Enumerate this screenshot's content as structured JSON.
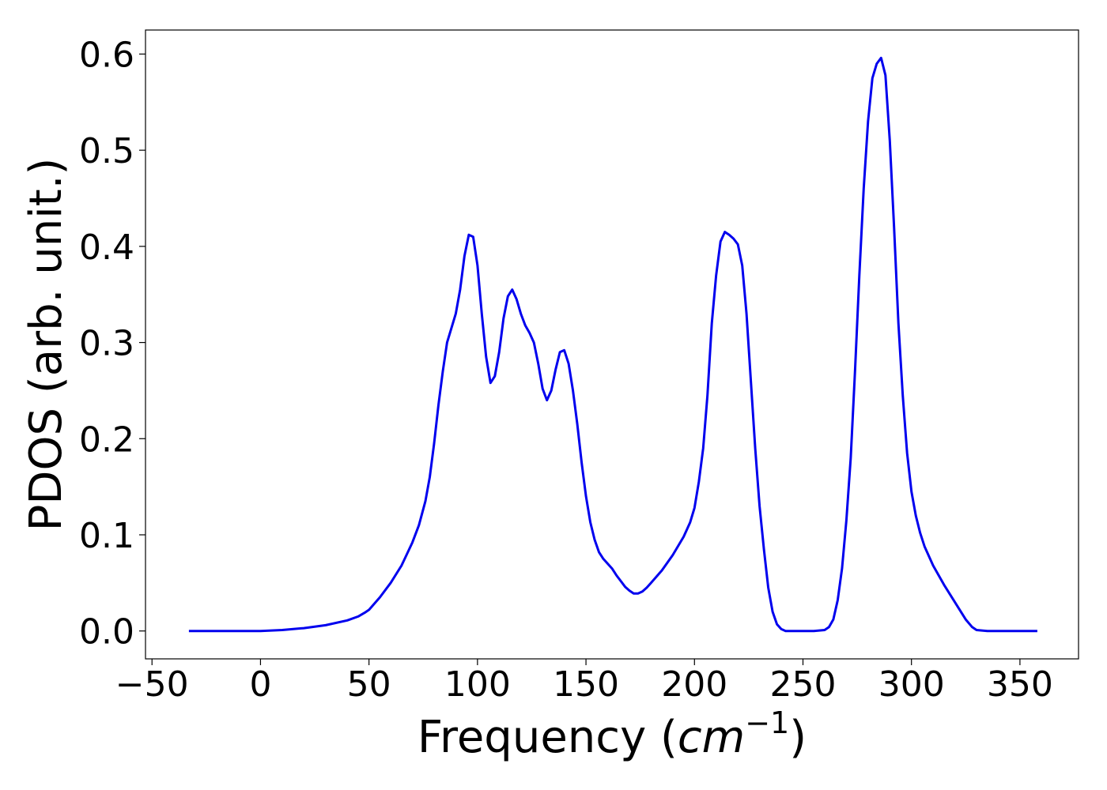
{
  "chart_data": {
    "type": "line",
    "title": "",
    "xlabel": "Frequency (cm⁻¹)",
    "xlabel_parts": {
      "prefix": "Frequency (",
      "unit_base": "cm",
      "unit_exp": "−1",
      "suffix": ")"
    },
    "ylabel": "PDOS (arb. unit.)",
    "xlim": [
      -53,
      377
    ],
    "ylim": [
      -0.029,
      0.625
    ],
    "x_ticks": [
      -50,
      0,
      50,
      100,
      150,
      200,
      250,
      300,
      350
    ],
    "x_tick_labels": [
      "−50",
      "0",
      "50",
      "100",
      "150",
      "200",
      "250",
      "300",
      "350"
    ],
    "y_ticks": [
      0.0,
      0.1,
      0.2,
      0.3,
      0.4,
      0.5,
      0.6
    ],
    "y_tick_labels": [
      "0.0",
      "0.1",
      "0.2",
      "0.3",
      "0.4",
      "0.5",
      "0.6"
    ],
    "grid": false,
    "legend": "none",
    "line_color": "#0000ee",
    "series": [
      {
        "x": [
          -33,
          -20,
          0,
          10,
          20,
          30,
          40,
          45,
          48,
          50,
          55,
          60,
          65,
          70,
          73,
          76,
          78,
          80,
          82,
          84,
          86,
          88,
          90,
          92,
          94,
          96,
          98,
          100,
          102,
          104,
          106,
          108,
          110,
          112,
          114,
          116,
          118,
          120,
          122,
          124,
          126,
          128,
          130,
          132,
          134,
          136,
          138,
          140,
          142,
          144,
          146,
          148,
          150,
          152,
          154,
          156,
          158,
          160,
          162,
          164,
          166,
          168,
          170,
          172,
          174,
          176,
          178,
          180,
          185,
          190,
          195,
          198,
          200,
          202,
          204,
          206,
          208,
          210,
          212,
          214,
          216,
          218,
          220,
          222,
          224,
          226,
          228,
          230,
          232,
          234,
          236,
          238,
          240,
          242,
          245,
          250,
          255,
          260,
          262,
          264,
          266,
          268,
          270,
          272,
          274,
          276,
          278,
          280,
          282,
          284,
          286,
          288,
          290,
          292,
          294,
          296,
          298,
          300,
          302,
          304,
          306,
          310,
          315,
          320,
          325,
          328,
          330,
          335,
          340,
          350,
          358
        ],
        "y": [
          0.0,
          0.0,
          0.0,
          0.001,
          0.003,
          0.006,
          0.011,
          0.015,
          0.019,
          0.022,
          0.035,
          0.05,
          0.068,
          0.092,
          0.11,
          0.135,
          0.16,
          0.195,
          0.235,
          0.27,
          0.3,
          0.315,
          0.33,
          0.355,
          0.39,
          0.412,
          0.41,
          0.38,
          0.33,
          0.285,
          0.258,
          0.265,
          0.29,
          0.325,
          0.348,
          0.355,
          0.345,
          0.33,
          0.318,
          0.31,
          0.3,
          0.278,
          0.252,
          0.24,
          0.25,
          0.272,
          0.29,
          0.292,
          0.278,
          0.25,
          0.215,
          0.175,
          0.14,
          0.113,
          0.095,
          0.082,
          0.075,
          0.07,
          0.065,
          0.058,
          0.052,
          0.046,
          0.042,
          0.039,
          0.039,
          0.041,
          0.045,
          0.05,
          0.063,
          0.079,
          0.098,
          0.113,
          0.128,
          0.155,
          0.19,
          0.245,
          0.32,
          0.37,
          0.405,
          0.415,
          0.412,
          0.408,
          0.402,
          0.38,
          0.33,
          0.26,
          0.19,
          0.13,
          0.085,
          0.045,
          0.02,
          0.007,
          0.002,
          0.0,
          0.0,
          0.0,
          0.0,
          0.001,
          0.004,
          0.012,
          0.032,
          0.065,
          0.115,
          0.18,
          0.27,
          0.37,
          0.46,
          0.53,
          0.575,
          0.59,
          0.596,
          0.578,
          0.51,
          0.42,
          0.32,
          0.245,
          0.185,
          0.145,
          0.12,
          0.102,
          0.088,
          0.068,
          0.048,
          0.03,
          0.012,
          0.004,
          0.001,
          0.0,
          0.0,
          0.0,
          0.0
        ]
      }
    ]
  }
}
